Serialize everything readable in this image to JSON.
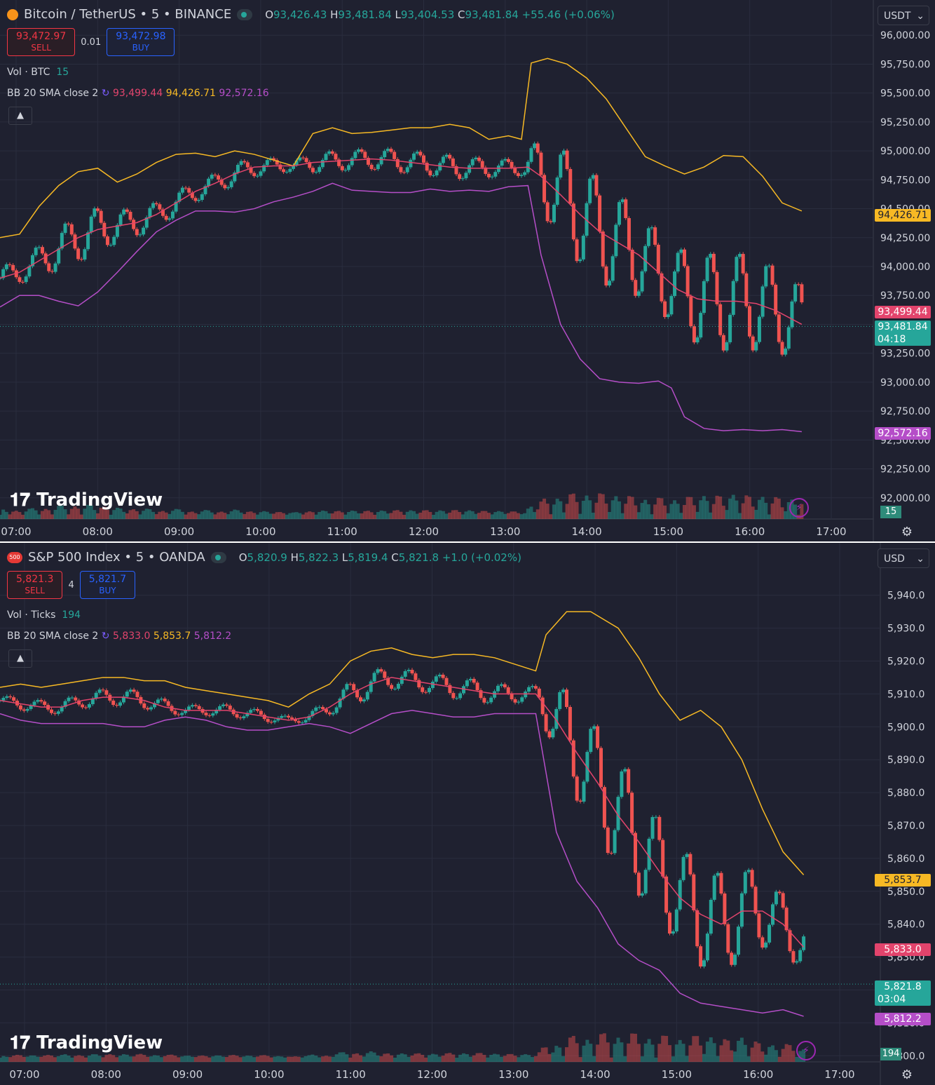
{
  "colors": {
    "bg": "#1f2130",
    "grid": "#2a2d3e",
    "text": "#d1d4dc",
    "up": "#26a69a",
    "down": "#ef5350",
    "bb_mid": "#e2446c",
    "bb_upper": "#f7b924",
    "bb_lower": "#b54ec8"
  },
  "chart_data": [
    {
      "type": "candlestick",
      "symbol": "Bitcoin / TetherUS • 5 • BINANCE",
      "ohlc": {
        "o": "93,426.43",
        "h": "93,481.84",
        "l": "93,404.53",
        "c": "93,481.84",
        "chg": "+55.46 (+0.06%)"
      },
      "sell": "93,472.97",
      "buy": "93,472.98",
      "qty": "0.01",
      "vol_label": "Vol · BTC",
      "vol_value": "15",
      "bb_label": "BB 20 SMA close 2",
      "bb_mid": "93,499.44",
      "bb_upper": "94,426.71",
      "bb_lower": "92,572.16",
      "currency": "USDT",
      "time_left": "04:18",
      "last": "93,481.84",
      "y_ticks": [
        "96,000.00",
        "95,750.00",
        "95,500.00",
        "95,250.00",
        "95,000.00",
        "94,750.00",
        "94,500.00",
        "94,250.00",
        "94,000.00",
        "93,750.00",
        "93,500.00",
        "93,250.00",
        "93,000.00",
        "92,750.00",
        "92,500.00",
        "92,250.00",
        "92,000.00"
      ],
      "ylim": [
        91950,
        96050
      ],
      "x_ticks": [
        "07:00",
        "08:00",
        "09:00",
        "10:00",
        "11:00",
        "12:00",
        "13:00",
        "14:00",
        "15:00",
        "16:00",
        "17:00"
      ],
      "bb_upper_series": [
        [
          0,
          94250
        ],
        [
          6,
          94280
        ],
        [
          12,
          94520
        ],
        [
          18,
          94700
        ],
        [
          24,
          94820
        ],
        [
          30,
          94850
        ],
        [
          36,
          94730
        ],
        [
          42,
          94800
        ],
        [
          48,
          94900
        ],
        [
          54,
          94970
        ],
        [
          60,
          94980
        ],
        [
          66,
          94950
        ],
        [
          72,
          95000
        ],
        [
          78,
          94970
        ],
        [
          84,
          94920
        ],
        [
          90,
          94870
        ],
        [
          96,
          95150
        ],
        [
          102,
          95200
        ],
        [
          108,
          95150
        ],
        [
          114,
          95160
        ],
        [
          120,
          95180
        ],
        [
          126,
          95200
        ],
        [
          132,
          95200
        ],
        [
          138,
          95230
        ],
        [
          144,
          95200
        ],
        [
          150,
          95100
        ],
        [
          156,
          95130
        ],
        [
          160,
          95100
        ],
        [
          163,
          95760
        ],
        [
          168,
          95800
        ],
        [
          174,
          95750
        ],
        [
          180,
          95630
        ],
        [
          186,
          95450
        ],
        [
          192,
          95200
        ],
        [
          198,
          94950
        ],
        [
          204,
          94870
        ],
        [
          210,
          94800
        ],
        [
          216,
          94860
        ],
        [
          222,
          94960
        ],
        [
          228,
          94950
        ],
        [
          234,
          94780
        ],
        [
          240,
          94550
        ],
        [
          246,
          94480
        ]
      ],
      "bb_mid_series": [
        [
          0,
          93900
        ],
        [
          6,
          93950
        ],
        [
          12,
          94050
        ],
        [
          18,
          94150
        ],
        [
          24,
          94250
        ],
        [
          30,
          94320
        ],
        [
          36,
          94350
        ],
        [
          42,
          94380
        ],
        [
          48,
          94450
        ],
        [
          54,
          94550
        ],
        [
          60,
          94650
        ],
        [
          66,
          94720
        ],
        [
          72,
          94800
        ],
        [
          78,
          94860
        ],
        [
          84,
          94870
        ],
        [
          90,
          94870
        ],
        [
          96,
          94900
        ],
        [
          102,
          94910
        ],
        [
          108,
          94920
        ],
        [
          114,
          94930
        ],
        [
          120,
          94920
        ],
        [
          126,
          94900
        ],
        [
          132,
          94880
        ],
        [
          138,
          94860
        ],
        [
          144,
          94850
        ],
        [
          150,
          94850
        ],
        [
          156,
          94850
        ],
        [
          162,
          94860
        ],
        [
          166,
          94780
        ],
        [
          172,
          94620
        ],
        [
          178,
          94450
        ],
        [
          184,
          94300
        ],
        [
          190,
          94200
        ],
        [
          196,
          94100
        ],
        [
          202,
          93950
        ],
        [
          208,
          93800
        ],
        [
          214,
          93720
        ],
        [
          220,
          93700
        ],
        [
          226,
          93700
        ],
        [
          232,
          93680
        ],
        [
          238,
          93620
        ],
        [
          246,
          93500
        ]
      ],
      "bb_lower_series": [
        [
          0,
          93650
        ],
        [
          6,
          93750
        ],
        [
          12,
          93750
        ],
        [
          18,
          93700
        ],
        [
          24,
          93660
        ],
        [
          30,
          93780
        ],
        [
          36,
          93950
        ],
        [
          42,
          94130
        ],
        [
          48,
          94300
        ],
        [
          54,
          94400
        ],
        [
          60,
          94480
        ],
        [
          66,
          94480
        ],
        [
          72,
          94470
        ],
        [
          78,
          94500
        ],
        [
          84,
          94560
        ],
        [
          90,
          94600
        ],
        [
          96,
          94650
        ],
        [
          102,
          94720
        ],
        [
          108,
          94660
        ],
        [
          114,
          94650
        ],
        [
          120,
          94640
        ],
        [
          126,
          94640
        ],
        [
          132,
          94670
        ],
        [
          138,
          94650
        ],
        [
          144,
          94660
        ],
        [
          150,
          94650
        ],
        [
          156,
          94690
        ],
        [
          162,
          94700
        ],
        [
          166,
          94100
        ],
        [
          172,
          93500
        ],
        [
          178,
          93200
        ],
        [
          184,
          93030
        ],
        [
          190,
          93000
        ],
        [
          196,
          92990
        ],
        [
          202,
          93010
        ],
        [
          206,
          92950
        ],
        [
          210,
          92700
        ],
        [
          216,
          92600
        ],
        [
          222,
          92580
        ],
        [
          228,
          92590
        ],
        [
          234,
          92580
        ],
        [
          240,
          92590
        ],
        [
          246,
          92572
        ]
      ]
    },
    {
      "type": "candlestick",
      "symbol": "S&P 500 Index • 5 • OANDA",
      "ohlc": {
        "o": "5,820.9",
        "h": "5,822.3",
        "l": "5,819.4",
        "c": "5,821.8",
        "chg": "+1.0 (+0.02%)"
      },
      "sell": "5,821.3",
      "buy": "5,821.7",
      "qty": "4",
      "vol_label": "Vol · Ticks",
      "vol_value": "194",
      "bb_label": "BB 20 SMA close 2",
      "bb_mid": "5,833.0",
      "bb_upper": "5,853.7",
      "bb_lower": "5,812.2",
      "currency": "USD",
      "time_left": "03:04",
      "last": "5,821.8",
      "y_ticks": [
        "5,940.0",
        "5,930.0",
        "5,920.0",
        "5,910.0",
        "5,900.0",
        "5,890.0",
        "5,880.0",
        "5,870.0",
        "5,860.0",
        "5,850.0",
        "5,840.0",
        "5,830.0",
        "5,820.0",
        "5,810.0",
        "5,800.0"
      ],
      "ylim": [
        5799,
        5941
      ],
      "x_ticks": [
        "07:00",
        "08:00",
        "09:00",
        "10:00",
        "11:00",
        "12:00",
        "13:00",
        "14:00",
        "15:00",
        "16:00",
        "17:00"
      ],
      "bb_upper_series": [
        [
          0,
          5912
        ],
        [
          6,
          5913
        ],
        [
          12,
          5912
        ],
        [
          18,
          5913
        ],
        [
          24,
          5914
        ],
        [
          30,
          5915
        ],
        [
          36,
          5915
        ],
        [
          42,
          5914
        ],
        [
          48,
          5914
        ],
        [
          54,
          5912
        ],
        [
          60,
          5911
        ],
        [
          66,
          5910
        ],
        [
          72,
          5909
        ],
        [
          78,
          5908
        ],
        [
          84,
          5906
        ],
        [
          90,
          5910
        ],
        [
          96,
          5913
        ],
        [
          102,
          5920
        ],
        [
          108,
          5923
        ],
        [
          114,
          5924
        ],
        [
          120,
          5922
        ],
        [
          126,
          5921
        ],
        [
          132,
          5922
        ],
        [
          138,
          5922
        ],
        [
          144,
          5921
        ],
        [
          150,
          5919
        ],
        [
          156,
          5917
        ],
        [
          159,
          5928
        ],
        [
          165,
          5935
        ],
        [
          172,
          5935
        ],
        [
          180,
          5930
        ],
        [
          186,
          5921
        ],
        [
          192,
          5910
        ],
        [
          198,
          5902
        ],
        [
          204,
          5905
        ],
        [
          210,
          5900
        ],
        [
          216,
          5890
        ],
        [
          222,
          5875
        ],
        [
          228,
          5862
        ],
        [
          234,
          5855
        ]
      ],
      "bb_mid_series": [
        [
          0,
          5908
        ],
        [
          6,
          5907
        ],
        [
          12,
          5906
        ],
        [
          18,
          5906
        ],
        [
          24,
          5908
        ],
        [
          30,
          5909
        ],
        [
          36,
          5909
        ],
        [
          42,
          5908
        ],
        [
          48,
          5906
        ],
        [
          54,
          5905
        ],
        [
          60,
          5905
        ],
        [
          66,
          5905
        ],
        [
          72,
          5904
        ],
        [
          78,
          5903
        ],
        [
          84,
          5902
        ],
        [
          90,
          5903
        ],
        [
          96,
          5906
        ],
        [
          102,
          5910
        ],
        [
          108,
          5913
        ],
        [
          114,
          5915
        ],
        [
          120,
          5914
        ],
        [
          126,
          5913
        ],
        [
          132,
          5912
        ],
        [
          138,
          5911
        ],
        [
          144,
          5910
        ],
        [
          150,
          5910
        ],
        [
          156,
          5910
        ],
        [
          162,
          5902
        ],
        [
          168,
          5892
        ],
        [
          174,
          5883
        ],
        [
          180,
          5873
        ],
        [
          186,
          5865
        ],
        [
          192,
          5856
        ],
        [
          198,
          5848
        ],
        [
          204,
          5843
        ],
        [
          210,
          5840
        ],
        [
          216,
          5844
        ],
        [
          222,
          5844
        ],
        [
          228,
          5840
        ],
        [
          234,
          5833
        ]
      ],
      "bb_lower_series": [
        [
          0,
          5904
        ],
        [
          6,
          5902
        ],
        [
          12,
          5901
        ],
        [
          18,
          5901
        ],
        [
          24,
          5901
        ],
        [
          30,
          5901
        ],
        [
          36,
          5900
        ],
        [
          42,
          5900
        ],
        [
          48,
          5902
        ],
        [
          54,
          5903
        ],
        [
          60,
          5902
        ],
        [
          66,
          5900
        ],
        [
          72,
          5899
        ],
        [
          78,
          5899
        ],
        [
          84,
          5900
        ],
        [
          90,
          5901
        ],
        [
          96,
          5900
        ],
        [
          102,
          5898
        ],
        [
          108,
          5901
        ],
        [
          114,
          5904
        ],
        [
          120,
          5905
        ],
        [
          126,
          5904
        ],
        [
          132,
          5903
        ],
        [
          138,
          5903
        ],
        [
          144,
          5904
        ],
        [
          150,
          5904
        ],
        [
          156,
          5904
        ],
        [
          162,
          5868
        ],
        [
          168,
          5853
        ],
        [
          174,
          5845
        ],
        [
          180,
          5834
        ],
        [
          186,
          5829
        ],
        [
          192,
          5826
        ],
        [
          198,
          5819
        ],
        [
          204,
          5816
        ],
        [
          210,
          5815
        ],
        [
          216,
          5814
        ],
        [
          222,
          5813
        ],
        [
          228,
          5814
        ],
        [
          234,
          5812
        ]
      ]
    }
  ],
  "branding": {
    "logo": "TradingView"
  },
  "icons": [
    "bitcoin-coin-icon",
    "spx-500-badge-icon",
    "refresh-icon",
    "chevron-up-icon",
    "chevron-down-icon",
    "settings-gear-icon",
    "lightning-icon"
  ]
}
